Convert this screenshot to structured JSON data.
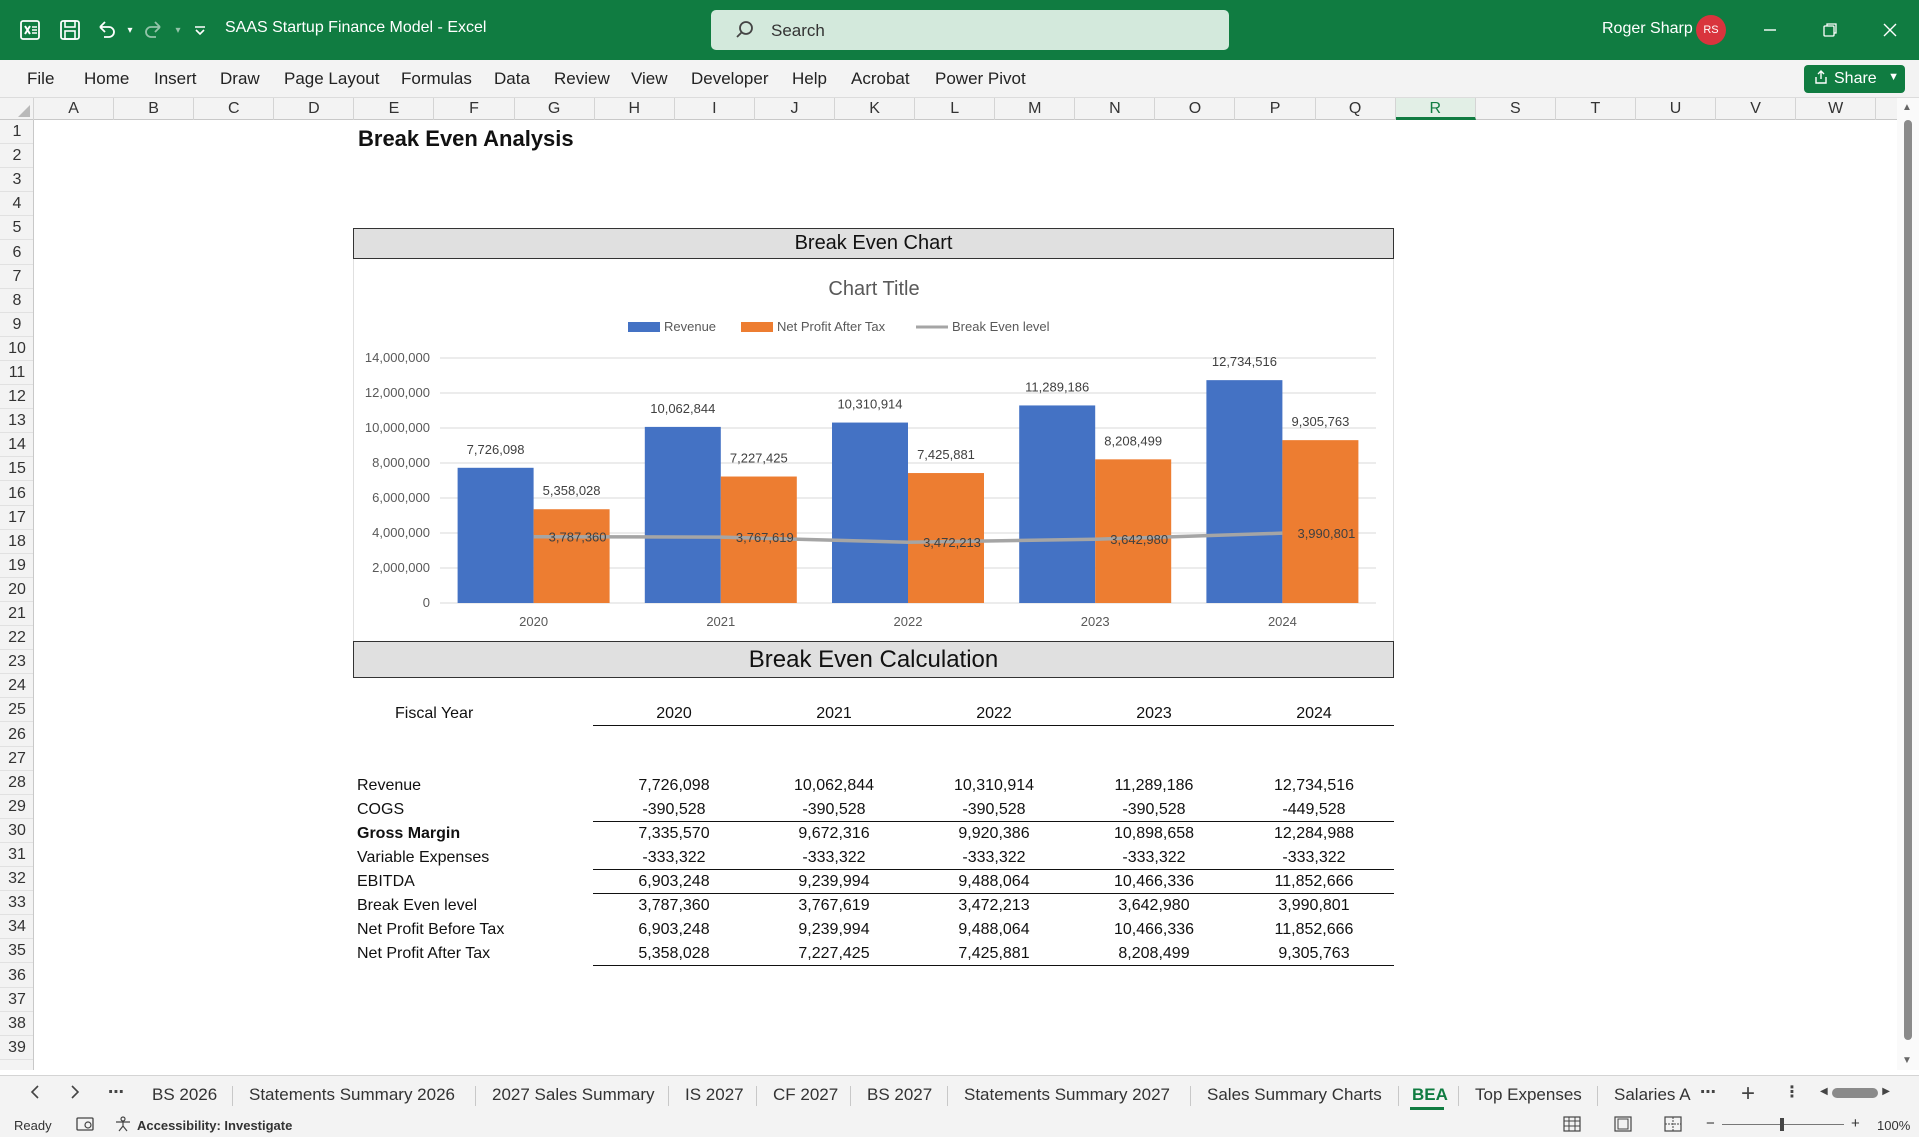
{
  "app": {
    "doc_title": "SAAS Startup Finance Model  -  Excel",
    "search_placeholder": "Search",
    "user_name": "Roger Sharp",
    "user_initials": "RS",
    "accent": "#107c41"
  },
  "menu": [
    "File",
    "Home",
    "Insert",
    "Draw",
    "Page Layout",
    "Formulas",
    "Data",
    "Review",
    "View",
    "Developer",
    "Help",
    "Acrobat",
    "Power Pivot"
  ],
  "share_label": "Share",
  "columns": [
    "A",
    "B",
    "C",
    "D",
    "E",
    "F",
    "G",
    "H",
    "I",
    "J",
    "K",
    "L",
    "M",
    "N",
    "O",
    "P",
    "Q",
    "R",
    "S",
    "T",
    "U",
    "V",
    "W"
  ],
  "selected_column": "R",
  "rows": [
    "1",
    "2",
    "3",
    "4",
    "5",
    "6",
    "7",
    "8",
    "9",
    "10",
    "11",
    "12",
    "13",
    "14",
    "15",
    "16",
    "17",
    "18",
    "19",
    "20",
    "21",
    "22",
    "23",
    "24",
    "25",
    "26",
    "27",
    "28",
    "29",
    "30",
    "31",
    "32",
    "33",
    "34",
    "35",
    "36",
    "37",
    "38",
    "39"
  ],
  "sheet": {
    "title": "Break Even Analysis",
    "chart_banner": "Break Even Chart",
    "calc_banner": "Break Even Calculation"
  },
  "chart_data": {
    "type": "bar",
    "title": "Chart Title",
    "categories": [
      "2020",
      "2021",
      "2022",
      "2023",
      "2024"
    ],
    "series": [
      {
        "name": "Revenue",
        "type": "bar",
        "color": "#4472c4",
        "values": [
          7726098,
          10062844,
          10310914,
          11289186,
          12734516
        ]
      },
      {
        "name": "Net Profit After Tax",
        "type": "bar",
        "color": "#ed7d31",
        "values": [
          5358028,
          7227425,
          7425881,
          8208499,
          9305763
        ]
      },
      {
        "name": "Break Even level",
        "type": "line",
        "color": "#a5a5a5",
        "values": [
          3787360,
          3767619,
          3472213,
          3642980,
          3990801
        ]
      }
    ],
    "ylim": [
      0,
      14000000
    ],
    "yticks": [
      "0",
      "2,000,000",
      "4,000,000",
      "6,000,000",
      "8,000,000",
      "10,000,000",
      "12,000,000",
      "14,000,000"
    ],
    "data_labels": [
      [
        "7,726,098",
        "10,062,844",
        "10,310,914",
        "11,289,186",
        "12,734,516"
      ],
      [
        "5,358,028",
        "7,227,425",
        "7,425,881",
        "8,208,499",
        "9,305,763"
      ],
      [
        "3,787,360",
        "3,767,619",
        "3,472,213",
        "3,642,980",
        "3,990,801"
      ]
    ],
    "legend_position": "top",
    "grid": true
  },
  "table": {
    "header_label": "Fiscal Year",
    "years": [
      "2020",
      "2021",
      "2022",
      "2023",
      "2024"
    ],
    "rows": [
      {
        "label": "Revenue",
        "bold": false,
        "values": [
          "7,726,098",
          "10,062,844",
          "10,310,914",
          "11,289,186",
          "12,734,516"
        ]
      },
      {
        "label": "COGS",
        "bold": false,
        "values": [
          "-390,528",
          "-390,528",
          "-390,528",
          "-390,528",
          "-449,528"
        ]
      },
      {
        "label": "Gross Margin",
        "bold": true,
        "values": [
          "7,335,570",
          "9,672,316",
          "9,920,386",
          "10,898,658",
          "12,284,988"
        ]
      },
      {
        "label": "Variable Expenses",
        "bold": false,
        "values": [
          "-333,322",
          "-333,322",
          "-333,322",
          "-333,322",
          "-333,322"
        ]
      },
      {
        "label": "EBITDA",
        "bold": false,
        "values": [
          "6,903,248",
          "9,239,994",
          "9,488,064",
          "10,466,336",
          "11,852,666"
        ]
      },
      {
        "label": "Break Even level",
        "bold": false,
        "values": [
          "3,787,360",
          "3,767,619",
          "3,472,213",
          "3,642,980",
          "3,990,801"
        ]
      },
      {
        "label": "Net Profit Before Tax",
        "bold": false,
        "values": [
          "6,903,248",
          "9,239,994",
          "9,488,064",
          "10,466,336",
          "11,852,666"
        ]
      },
      {
        "label": "Net Profit After Tax",
        "bold": false,
        "values": [
          "5,358,028",
          "7,227,425",
          "7,425,881",
          "8,208,499",
          "9,305,763"
        ]
      }
    ]
  },
  "tabs": [
    "BS 2026",
    "Statements Summary 2026",
    "2027 Sales Summary",
    "IS 2027",
    "CF 2027",
    "BS 2027",
    "Statements Summary 2027",
    "Sales Summary Charts",
    "BEA",
    "Top Expenses",
    "Salaries A"
  ],
  "active_tab": "BEA",
  "status": {
    "ready": "Ready",
    "accessibility": "Accessibility: Investigate",
    "zoom": "100%"
  }
}
